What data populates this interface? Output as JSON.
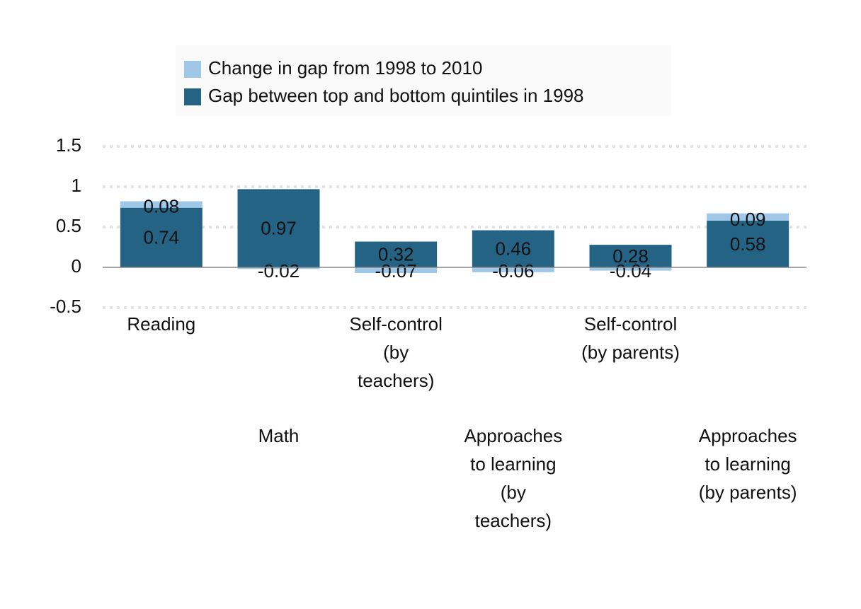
{
  "chart_data": {
    "type": "stacked-bar",
    "categories": [
      "Reading",
      "Math",
      "Self-control (by teachers)",
      "Approaches to learning (by teachers)",
      "Self-control (by parents)",
      "Approaches to learning (by parents)"
    ],
    "series": [
      {
        "name": "Change in gap from 1998 to 2010",
        "color": "#9fc8e8",
        "values": [
          0.08,
          -0.02,
          -0.07,
          -0.06,
          -0.04,
          0.09
        ]
      },
      {
        "name": "Gap between top and bottom quintiles in 1998",
        "color": "#246383",
        "values": [
          0.74,
          0.97,
          0.32,
          0.46,
          0.28,
          0.58
        ]
      }
    ],
    "ylim": [
      -0.5,
      1.5
    ],
    "yticks": [
      1.5,
      1,
      0.5,
      0,
      -0.5
    ],
    "grid": true
  }
}
